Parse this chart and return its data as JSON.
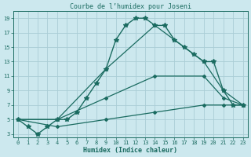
{
  "title": "Courbe de l’humidex pour Joseni",
  "xlabel": "Humidex (Indice chaleur)",
  "background_color": "#cce8ee",
  "grid_color": "#aacdd6",
  "line_color": "#1a6b60",
  "xlim": [
    -0.5,
    23.5
  ],
  "ylim": [
    2.5,
    20
  ],
  "xticks": [
    0,
    1,
    2,
    3,
    4,
    5,
    6,
    7,
    8,
    9,
    10,
    11,
    12,
    13,
    14,
    15,
    16,
    17,
    18,
    19,
    20,
    21,
    22,
    23
  ],
  "yticks": [
    3,
    5,
    7,
    9,
    11,
    13,
    15,
    17,
    19
  ],
  "lines": [
    {
      "x": [
        0,
        1,
        2,
        3,
        4,
        5,
        6,
        7,
        8,
        9,
        10,
        11,
        12,
        13,
        14,
        15,
        16,
        17,
        18,
        19,
        20,
        21,
        22,
        23
      ],
      "y": [
        5,
        4,
        3,
        4,
        5,
        5,
        6,
        8,
        10,
        12,
        16,
        18,
        19,
        19,
        18,
        18,
        16,
        15,
        14,
        13,
        13,
        9,
        7,
        7
      ],
      "marker": "*",
      "markersize": 4,
      "linewidth": 1.0
    },
    {
      "x": [
        0,
        4,
        9,
        14,
        19,
        21,
        23
      ],
      "y": [
        5,
        5,
        12,
        18,
        13,
        9,
        7
      ],
      "marker": "D",
      "markersize": 2,
      "linewidth": 0.9
    },
    {
      "x": [
        0,
        4,
        9,
        14,
        19,
        21,
        23
      ],
      "y": [
        5,
        5,
        8,
        11,
        11,
        8,
        7
      ],
      "marker": "D",
      "markersize": 2,
      "linewidth": 0.9
    },
    {
      "x": [
        0,
        4,
        9,
        14,
        19,
        21,
        23
      ],
      "y": [
        5,
        4,
        5,
        6,
        7,
        7,
        7
      ],
      "marker": "D",
      "markersize": 2,
      "linewidth": 0.9
    }
  ]
}
